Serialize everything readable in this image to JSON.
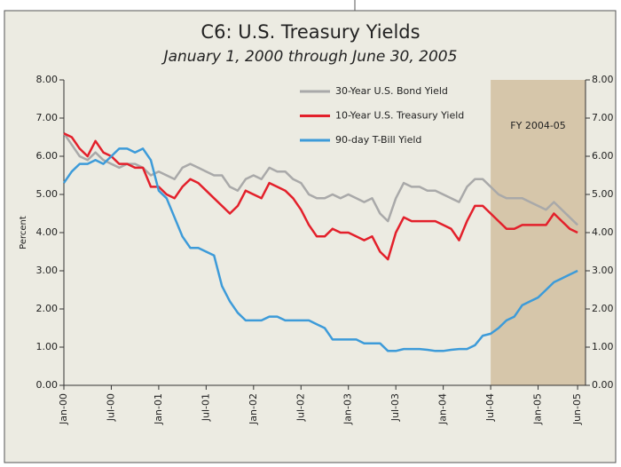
{
  "chart_data": {
    "type": "line",
    "title": "C6:  U.S. Treasury Yields",
    "subtitle": "January 1, 2000 through June 30, 2005",
    "ylabel": "Percent",
    "x": [
      0,
      1,
      2,
      3,
      4,
      5,
      6,
      7,
      8,
      9,
      10,
      11,
      12,
      13,
      14,
      15,
      16,
      17,
      18,
      19,
      20,
      21,
      22,
      23,
      24,
      25,
      26,
      27,
      28,
      29,
      30,
      31,
      32,
      33,
      34,
      35,
      36,
      37,
      38,
      39,
      40,
      41,
      42,
      43,
      44,
      45,
      46,
      47,
      48,
      49,
      50,
      51,
      52,
      53,
      54,
      55,
      56,
      57,
      58,
      59,
      60,
      61,
      62,
      63,
      64,
      65
    ],
    "xlim": [
      0,
      66
    ],
    "xticks": [
      {
        "value": 0,
        "label": "Jan-00"
      },
      {
        "value": 6,
        "label": "Jul-00"
      },
      {
        "value": 12,
        "label": "Jan-01"
      },
      {
        "value": 18,
        "label": "Jul-01"
      },
      {
        "value": 24,
        "label": "Jan-02"
      },
      {
        "value": 30,
        "label": "Jul-02"
      },
      {
        "value": 36,
        "label": "Jan-03"
      },
      {
        "value": 42,
        "label": "Jul-03"
      },
      {
        "value": 48,
        "label": "Jan-04"
      },
      {
        "value": 54,
        "label": "Jul-04"
      },
      {
        "value": 60,
        "label": "Jan-05"
      },
      {
        "value": 65,
        "label": "Jun-05"
      }
    ],
    "ylim": [
      0,
      8
    ],
    "yticks": [
      {
        "value": 0,
        "label": "0.00"
      },
      {
        "value": 1,
        "label": "1.00"
      },
      {
        "value": 2,
        "label": "2.00"
      },
      {
        "value": 3,
        "label": "3.00"
      },
      {
        "value": 4,
        "label": "4.00"
      },
      {
        "value": 5,
        "label": "5.00"
      },
      {
        "value": 6,
        "label": "6.00"
      },
      {
        "value": 7,
        "label": "7.00"
      },
      {
        "value": 8,
        "label": "8.00"
      }
    ],
    "shade": {
      "from": 54,
      "to": 66,
      "label": "FY 2004-05",
      "color": "#d6c6aa"
    },
    "series": [
      {
        "name": "30-Year U.S. Bond Yield",
        "color": "#a9a9a9",
        "values": [
          6.6,
          6.3,
          6.0,
          5.9,
          6.1,
          5.9,
          5.8,
          5.7,
          5.8,
          5.8,
          5.7,
          5.5,
          5.6,
          5.5,
          5.4,
          5.7,
          5.8,
          5.7,
          5.6,
          5.5,
          5.5,
          5.2,
          5.1,
          5.4,
          5.5,
          5.4,
          5.7,
          5.6,
          5.6,
          5.4,
          5.3,
          5.0,
          4.9,
          4.9,
          5.0,
          4.9,
          5.0,
          4.9,
          4.8,
          4.9,
          4.5,
          4.3,
          4.9,
          5.3,
          5.2,
          5.2,
          5.1,
          5.1,
          5.0,
          4.9,
          4.8,
          5.2,
          5.4,
          5.4,
          5.2,
          5.0,
          4.9,
          4.9,
          4.9,
          4.8,
          4.7,
          4.6,
          4.8,
          4.6,
          4.4,
          4.2
        ]
      },
      {
        "name": "10-Year U.S. Treasury Yield",
        "color": "#e3202b",
        "values": [
          6.6,
          6.5,
          6.2,
          6.0,
          6.4,
          6.1,
          6.0,
          5.8,
          5.8,
          5.7,
          5.7,
          5.2,
          5.2,
          5.0,
          4.9,
          5.2,
          5.4,
          5.3,
          5.1,
          4.9,
          4.7,
          4.5,
          4.7,
          5.1,
          5.0,
          4.9,
          5.3,
          5.2,
          5.1,
          4.9,
          4.6,
          4.2,
          3.9,
          3.9,
          4.1,
          4.0,
          4.0,
          3.9,
          3.8,
          3.9,
          3.5,
          3.3,
          4.0,
          4.4,
          4.3,
          4.3,
          4.3,
          4.3,
          4.2,
          4.1,
          3.8,
          4.3,
          4.7,
          4.7,
          4.5,
          4.3,
          4.1,
          4.1,
          4.2,
          4.2,
          4.2,
          4.2,
          4.5,
          4.3,
          4.1,
          4.0
        ]
      },
      {
        "name": "90-day T-Bill Yield",
        "color": "#3d9bd9",
        "values": [
          5.3,
          5.6,
          5.8,
          5.8,
          5.9,
          5.8,
          6.0,
          6.2,
          6.2,
          6.1,
          6.2,
          5.9,
          5.1,
          4.9,
          4.4,
          3.9,
          3.6,
          3.6,
          3.5,
          3.4,
          2.6,
          2.2,
          1.9,
          1.7,
          1.7,
          1.7,
          1.8,
          1.8,
          1.7,
          1.7,
          1.7,
          1.7,
          1.6,
          1.5,
          1.2,
          1.2,
          1.2,
          1.2,
          1.1,
          1.1,
          1.1,
          0.9,
          0.9,
          0.95,
          0.95,
          0.95,
          0.93,
          0.9,
          0.9,
          0.93,
          0.95,
          0.95,
          1.05,
          1.3,
          1.35,
          1.5,
          1.7,
          1.8,
          2.1,
          2.2,
          2.3,
          2.5,
          2.7,
          2.8,
          2.9,
          3.0
        ]
      }
    ]
  }
}
